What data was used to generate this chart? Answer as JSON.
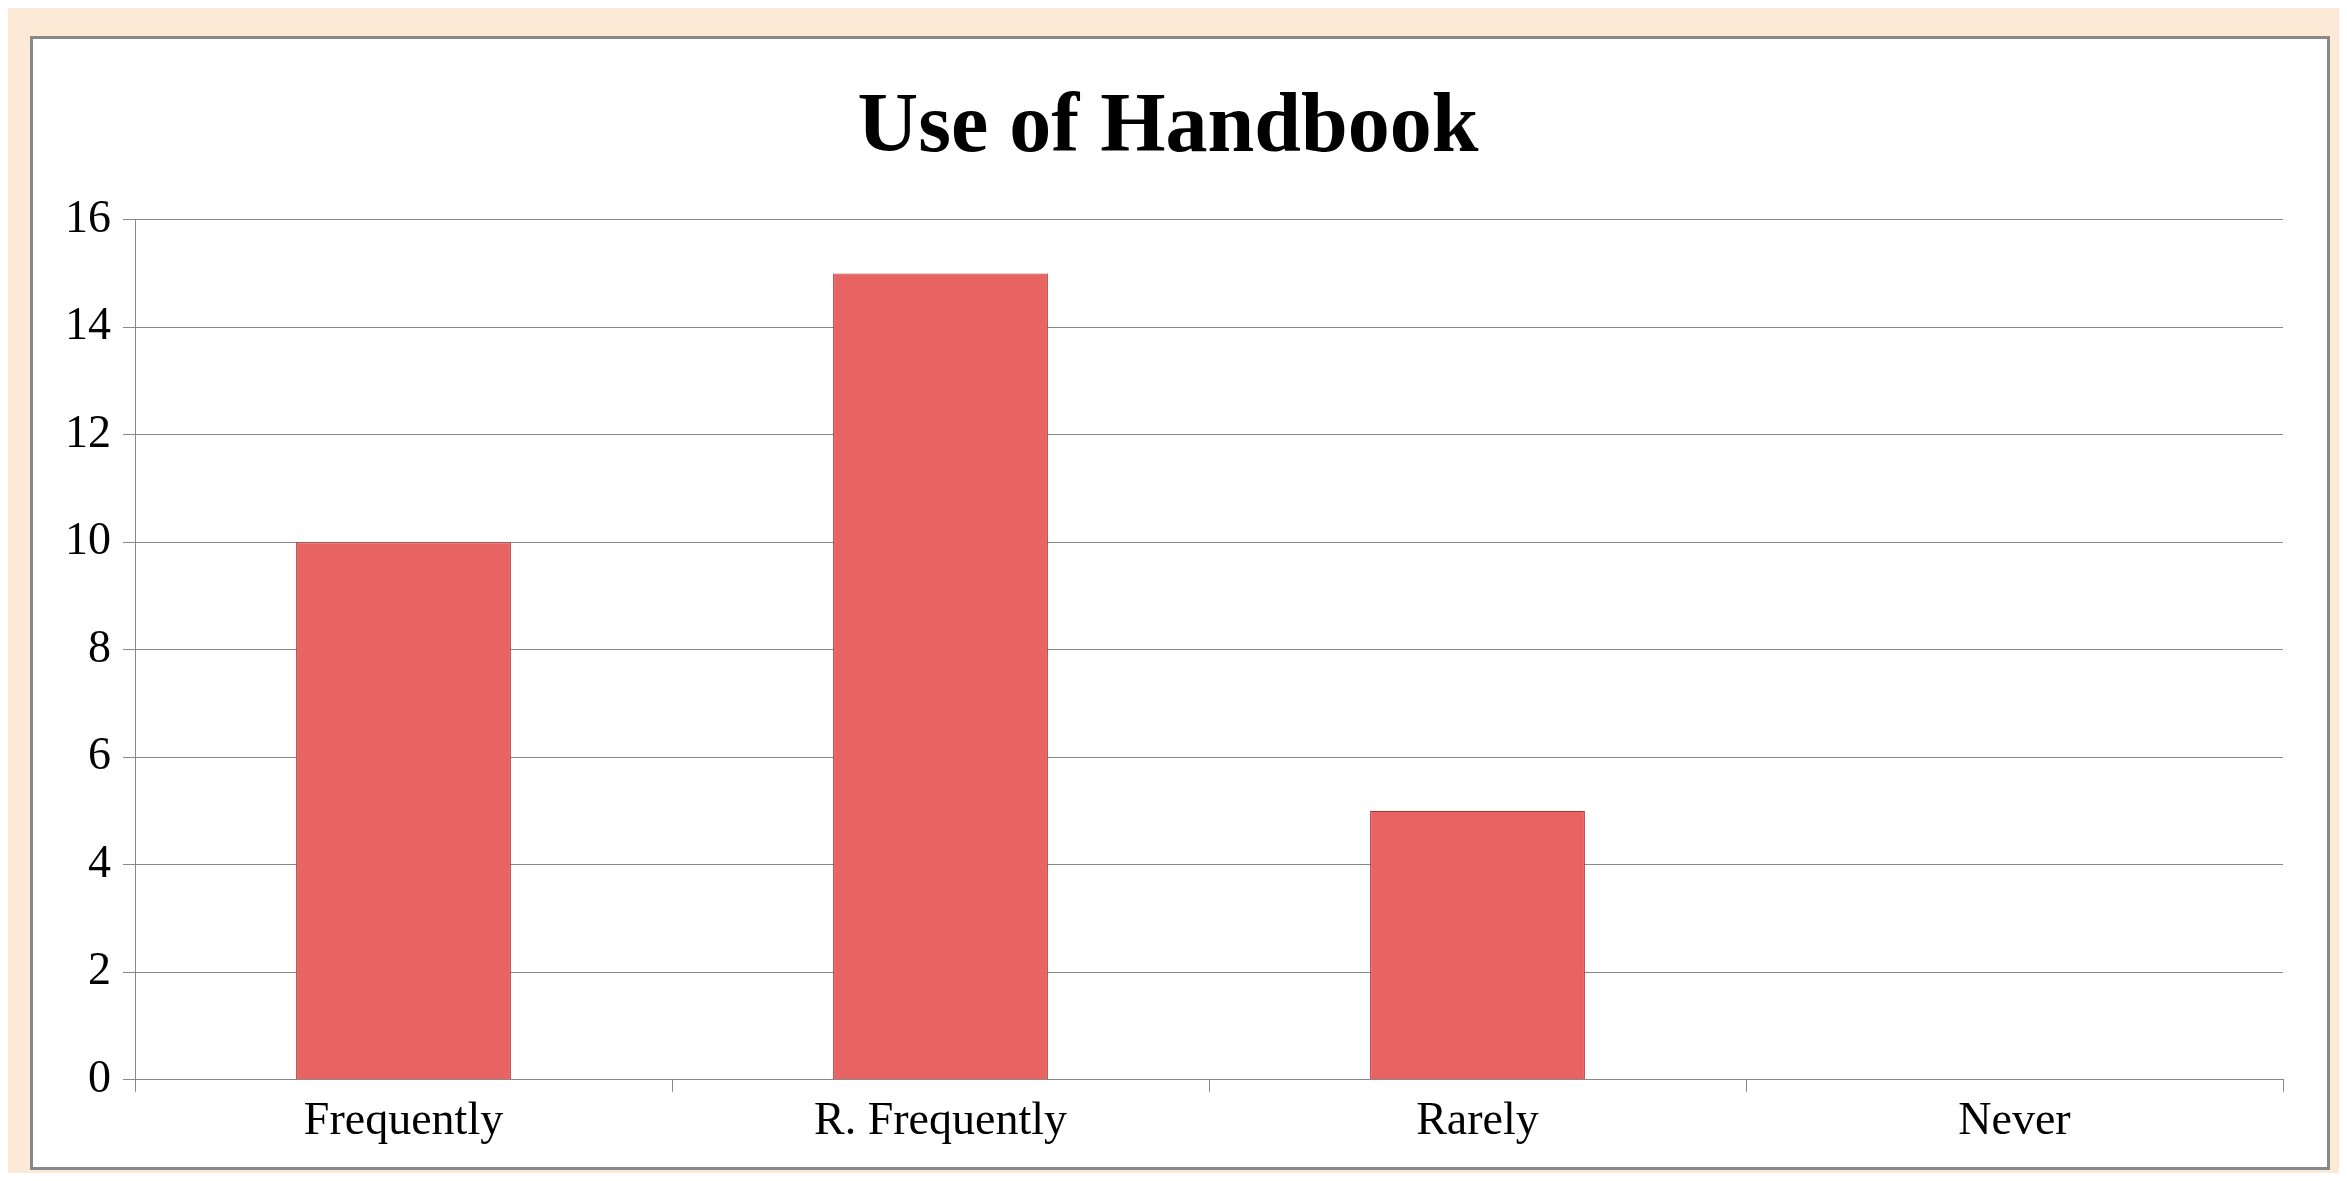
{
  "chart_data": {
    "type": "bar",
    "title": "Use of Handbook",
    "categories": [
      "Frequently",
      "R. Frequently",
      "Rarely",
      "Never"
    ],
    "values": [
      10,
      15,
      5,
      0
    ],
    "color": "#e86462",
    "ylim": [
      0,
      16
    ],
    "yticks": [
      0,
      2,
      4,
      6,
      8,
      10,
      12,
      14,
      16
    ],
    "grid": "y",
    "legend": false
  }
}
